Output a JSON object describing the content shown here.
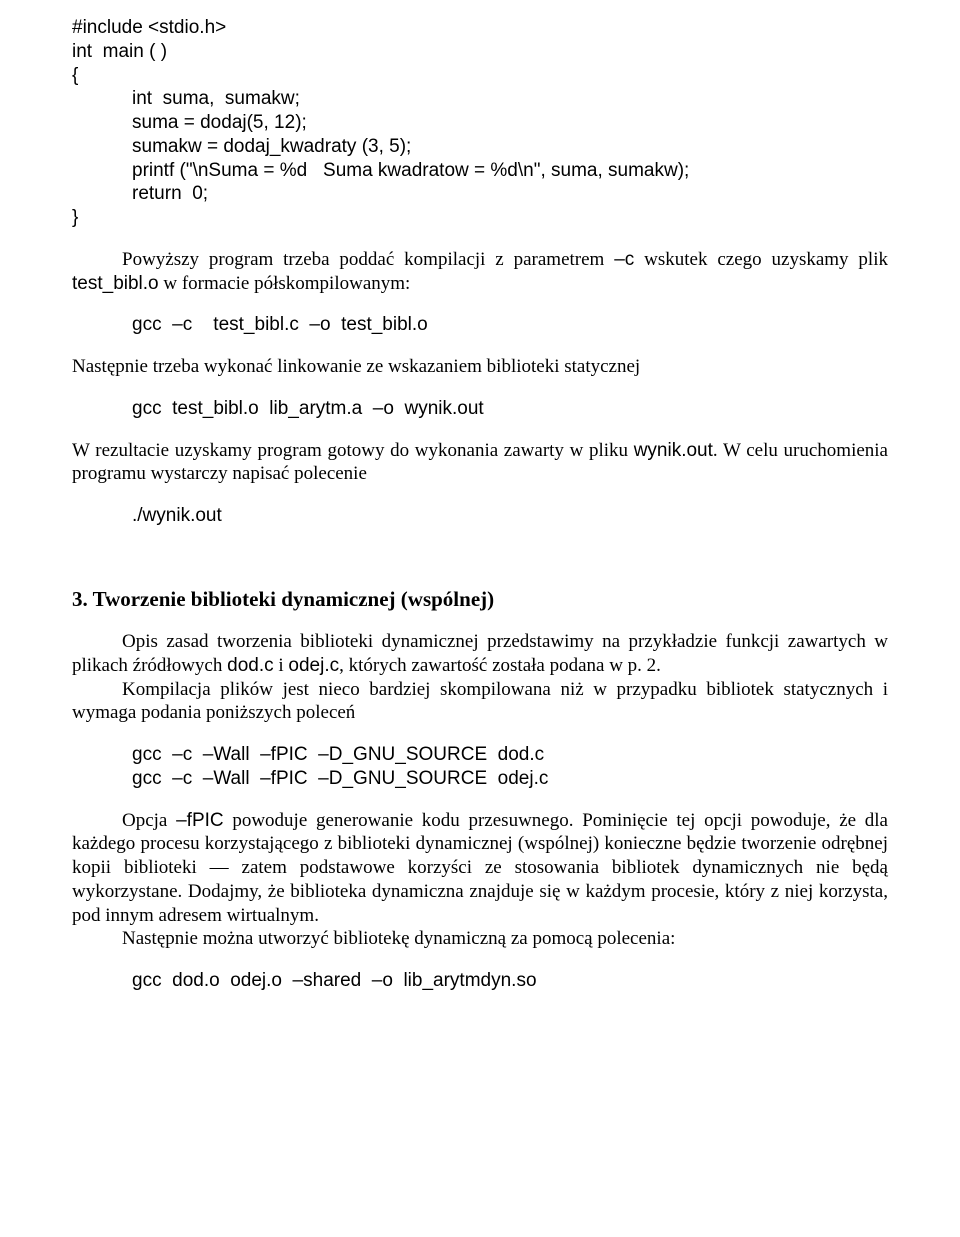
{
  "code1": {
    "l1": "#include <stdio.h>",
    "l2": "int  main ( )",
    "l3": "{",
    "l4": "int  suma,  sumakw;",
    "l5": "suma = dodaj(5, 12);",
    "l6": "sumakw = dodaj_kwadraty (3, 5);",
    "l7": "printf (\"\\nSuma = %d   Suma kwadratow = %d\\n\", suma, sumakw);",
    "l8": "return  0;",
    "l9": "}"
  },
  "p1a": "Powyższy program trzeba poddać kompilacji z parametrem ",
  "p1_opt": "–c",
  "p1b": " wskutek czego uzyskamy plik ",
  "p1_file": "test_bibl.o",
  "p1c": " w formacie półskompilowanym:",
  "cmd1": "gcc  –c    test_bibl.c  –o  test_bibl.o",
  "p2": "Następnie trzeba wykonać linkowanie ze wskazaniem biblioteki statycznej",
  "cmd2": "gcc  test_bibl.o  lib_arytm.a  –o  wynik.out",
  "p3a": "W rezultacie uzyskamy program gotowy do wykonania zawarty w pliku ",
  "p3_file": "wynik.out",
  "p3b": ". W celu uruchomienia programu wystarczy napisać polecenie",
  "cmd3": "./wynik.out",
  "h2": "3. Tworzenie biblioteki dynamicznej (wspólnej)",
  "p4a": "Opis zasad tworzenia biblioteki dynamicznej przedstawimy na przykładzie funkcji zawartych w plikach źródłowych ",
  "p4_f1": "dod.c",
  "p4_mid": " i ",
  "p4_f2": "odej.c",
  "p4b": ", których zawartość została podana w p. 2.",
  "p5": "Kompilacja plików jest nieco bardziej skompilowana niż w przypadku bibliotek statycznych i wymaga podania poniższych poleceń",
  "cmd4": "gcc  –c  –Wall  –fPIC  –D_GNU_SOURCE  dod.c",
  "cmd5": "gcc  –c  –Wall  –fPIC  –D_GNU_SOURCE  odej.c",
  "p6a": "Opcja ",
  "p6_opt": "–fPIC",
  "p6b": " powoduje generowanie kodu przesuwnego. Pominięcie tej opcji powoduje, że dla każdego procesu korzystającego z biblioteki dynamicznej (wspólnej) konieczne będzie tworzenie odrębnej kopii biblioteki — zatem podstawowe korzyści ze stosowania bibliotek dynamicznych nie będą wykorzystane. Dodajmy, że biblioteka dynamiczna znajduje się w każdym procesie, który z niej korzysta, pod innym adresem wirtualnym.",
  "p7": "Następnie można utworzyć bibliotekę dynamiczną za pomocą polecenia:",
  "cmd6": "gcc  dod.o  odej.o  –shared  –o  lib_arytmdyn.so"
}
